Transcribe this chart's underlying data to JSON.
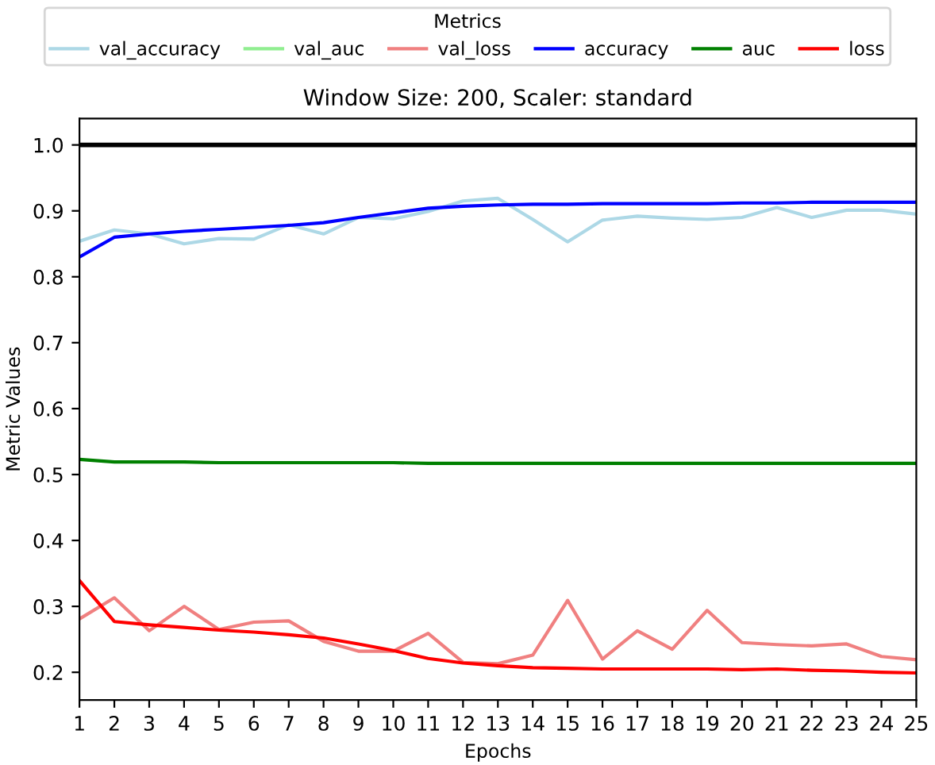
{
  "chart_data": {
    "type": "line",
    "title": "Window Size: 200, Scaler: standard",
    "xlabel": "Epochs",
    "ylabel": "Metric Values",
    "legend_title": "Metrics",
    "legend": "top",
    "x": [
      1,
      2,
      3,
      4,
      5,
      6,
      7,
      8,
      9,
      10,
      11,
      12,
      13,
      14,
      15,
      16,
      17,
      18,
      19,
      20,
      21,
      22,
      23,
      24,
      25
    ],
    "xlim": [
      1,
      25
    ],
    "xticks": [
      1,
      2,
      3,
      4,
      5,
      6,
      7,
      8,
      9,
      10,
      11,
      12,
      13,
      14,
      15,
      16,
      17,
      18,
      19,
      20,
      21,
      22,
      23,
      24,
      25
    ],
    "ylim": [
      0.158,
      1.04
    ],
    "yticks": [
      {
        "value": 0.2,
        "label": "0.2"
      },
      {
        "value": 0.3,
        "label": "0.3"
      },
      {
        "value": 0.4,
        "label": "0.4"
      },
      {
        "value": 0.5,
        "label": "0.5"
      },
      {
        "value": 0.6,
        "label": "0.6"
      },
      {
        "value": 0.7,
        "label": "0.7"
      },
      {
        "value": 0.8,
        "label": "0.8"
      },
      {
        "value": 0.9,
        "label": "0.9"
      },
      {
        "value": 1.0,
        "label": "1.0"
      }
    ],
    "grid": false,
    "ref_lines": [
      {
        "axis": "y",
        "value": 1.0,
        "color": "#000000",
        "line_style": "solid"
      }
    ],
    "series": [
      {
        "name": "val_accuracy",
        "color": "#add8e6",
        "values": [
          0.854,
          0.871,
          0.865,
          0.85,
          0.858,
          0.857,
          0.879,
          0.865,
          0.89,
          0.888,
          0.899,
          0.915,
          0.919,
          0.887,
          0.853,
          0.886,
          0.892,
          0.889,
          0.887,
          0.89,
          0.905,
          0.89,
          0.901,
          0.901,
          0.895
        ]
      },
      {
        "name": "val_auc",
        "color": "#90ee90",
        "values": [
          null,
          null,
          null,
          null,
          null,
          null,
          null,
          null,
          null,
          null,
          null,
          null,
          null,
          null,
          null,
          null,
          null,
          null,
          null,
          null,
          null,
          null,
          null,
          null,
          null
        ]
      },
      {
        "name": "val_loss",
        "color": "#f08080",
        "values": [
          0.281,
          0.313,
          0.263,
          0.3,
          0.265,
          0.276,
          0.278,
          0.247,
          0.232,
          0.232,
          0.259,
          0.215,
          0.213,
          0.226,
          0.309,
          0.22,
          0.263,
          0.235,
          0.294,
          0.245,
          0.242,
          0.24,
          0.243,
          0.224,
          0.219
        ]
      },
      {
        "name": "accuracy",
        "color": "#0000ff",
        "values": [
          0.83,
          0.86,
          0.865,
          0.869,
          0.872,
          0.875,
          0.878,
          0.882,
          0.89,
          0.897,
          0.904,
          0.907,
          0.909,
          0.91,
          0.91,
          0.911,
          0.911,
          0.911,
          0.911,
          0.912,
          0.912,
          0.913,
          0.913,
          0.913,
          0.913
        ]
      },
      {
        "name": "auc",
        "color": "#008000",
        "values": [
          0.523,
          0.519,
          0.519,
          0.519,
          0.518,
          0.518,
          0.518,
          0.518,
          0.518,
          0.518,
          0.517,
          0.517,
          0.517,
          0.517,
          0.517,
          0.517,
          0.517,
          0.517,
          0.517,
          0.517,
          0.517,
          0.517,
          0.517,
          0.517,
          0.517
        ]
      },
      {
        "name": "loss",
        "color": "#ff0000",
        "values": [
          0.339,
          0.277,
          0.272,
          0.268,
          0.264,
          0.261,
          0.257,
          0.252,
          0.243,
          0.233,
          0.221,
          0.214,
          0.21,
          0.207,
          0.206,
          0.205,
          0.205,
          0.205,
          0.205,
          0.204,
          0.205,
          0.203,
          0.202,
          0.2,
          0.199
        ]
      }
    ]
  }
}
